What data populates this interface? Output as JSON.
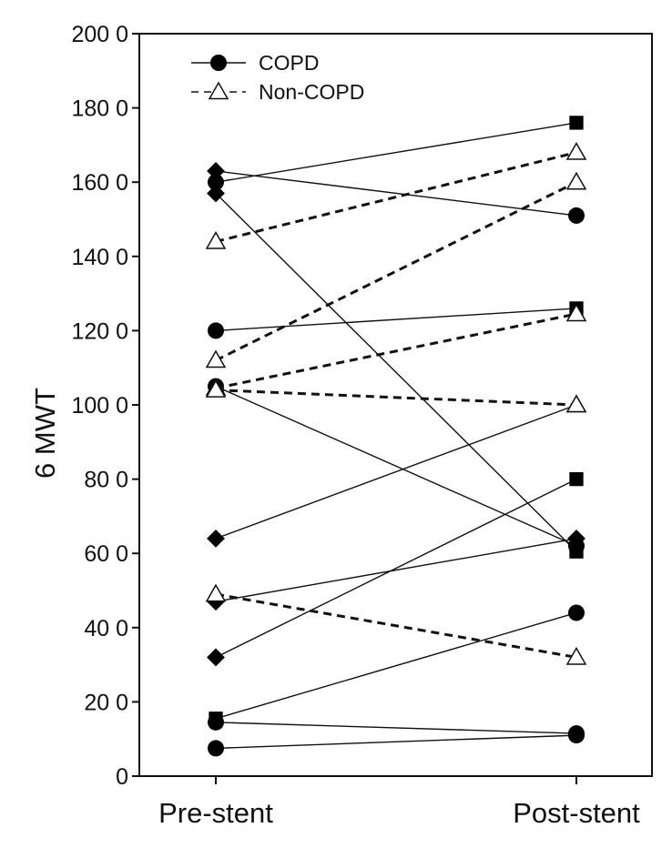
{
  "chart_data": {
    "type": "line",
    "ylabel": "6 MWT",
    "xlabel": "",
    "categories": [
      "Pre-stent",
      "Post-stent"
    ],
    "ylim": [
      0,
      2000
    ],
    "yticks": [
      0,
      200,
      400,
      600,
      800,
      1000,
      1200,
      1400,
      1600,
      1800,
      2000
    ],
    "ytick_labels": [
      "0",
      "20 0",
      "40 0",
      "60 0",
      "80 0",
      "100 0",
      "120 0",
      "140 0",
      "160 0",
      "180 0",
      "200 0"
    ],
    "legend": {
      "position": "top-left",
      "entries": [
        {
          "label": "COPD",
          "marker": "circle",
          "line": "solid"
        },
        {
          "label": "Non-COPD",
          "marker": "triangle-open",
          "line": "dashed"
        }
      ]
    },
    "grid": false,
    "series": [
      {
        "group": "COPD",
        "values": [
          1630,
          1510
        ],
        "markers": [
          "diamond",
          "circle"
        ]
      },
      {
        "group": "COPD",
        "values": [
          1600,
          1760
        ],
        "markers": [
          "circle",
          "square"
        ]
      },
      {
        "group": "COPD",
        "values": [
          1570,
          605
        ],
        "markers": [
          "diamond",
          "square"
        ]
      },
      {
        "group": "COPD",
        "values": [
          1200,
          1260
        ],
        "markers": [
          "circle",
          "square"
        ]
      },
      {
        "group": "COPD",
        "values": [
          1050,
          620
        ],
        "markers": [
          "circle",
          "circle"
        ]
      },
      {
        "group": "COPD",
        "values": [
          640,
          1000
        ],
        "markers": [
          "diamond",
          "triangle-open"
        ]
      },
      {
        "group": "COPD",
        "values": [
          470,
          640
        ],
        "markers": [
          "diamond",
          "diamond"
        ]
      },
      {
        "group": "COPD",
        "values": [
          320,
          800
        ],
        "markers": [
          "diamond",
          "square"
        ]
      },
      {
        "group": "COPD",
        "values": [
          155,
          440
        ],
        "markers": [
          "square",
          "circle"
        ]
      },
      {
        "group": "COPD",
        "values": [
          145,
          115
        ],
        "markers": [
          "circle",
          "circle"
        ]
      },
      {
        "group": "COPD",
        "values": [
          75,
          110
        ],
        "markers": [
          "circle",
          "circle"
        ]
      },
      {
        "group": "Non-COPD",
        "values": [
          1440,
          1680
        ],
        "markers": [
          "triangle-open",
          "triangle-open"
        ]
      },
      {
        "group": "Non-COPD",
        "values": [
          1120,
          1600
        ],
        "markers": [
          "triangle-open",
          "triangle-open"
        ]
      },
      {
        "group": "Non-COPD",
        "values": [
          1045,
          1245
        ],
        "markers": [
          "triangle-open",
          "triangle-open"
        ]
      },
      {
        "group": "Non-COPD",
        "values": [
          1040,
          1000
        ],
        "markers": [
          "triangle-open",
          "triangle-open"
        ]
      },
      {
        "group": "Non-COPD",
        "values": [
          490,
          320
        ],
        "markers": [
          "triangle-open",
          "triangle-open"
        ]
      }
    ]
  }
}
